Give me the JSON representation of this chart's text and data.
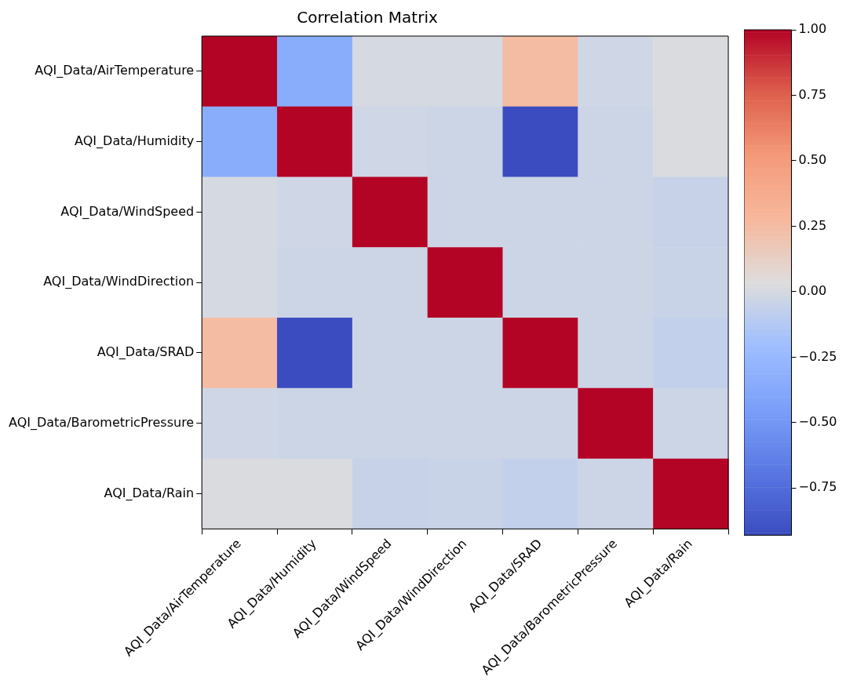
{
  "chart_data": {
    "type": "heatmap",
    "title": "Correlation Matrix",
    "categories": [
      "AQI_Data/AirTemperature",
      "AQI_Data/Humidity",
      "AQI_Data/WindSpeed",
      "AQI_Data/WindDirection",
      "AQI_Data/SRAD",
      "AQI_Data/BarometricPressure",
      "AQI_Data/Rain"
    ],
    "y_categories": [
      "AQI_Data/AirTemperature",
      "AQI_Data/Humidity",
      "AQI_Data/WindSpeed",
      "AQI_Data/WindDirection",
      "AQI_Data/SRAD",
      "AQI_Data/BarometricPressure",
      "AQI_Data/Rain"
    ],
    "cells": [
      [
        1,
        -0.35,
        0,
        0,
        0.25,
        -0.02,
        0.02
      ],
      [
        -0.35,
        1,
        -0.02,
        -0.03,
        -0.93,
        -0.03,
        0.02
      ],
      [
        0,
        -0.02,
        1,
        -0.03,
        -0.03,
        -0.03,
        -0.05
      ],
      [
        0,
        -0.03,
        -0.03,
        1,
        -0.03,
        -0.03,
        -0.04
      ],
      [
        0.25,
        -0.93,
        -0.03,
        -0.03,
        1,
        -0.03,
        -0.07
      ],
      [
        -0.02,
        -0.03,
        -0.03,
        -0.03,
        -0.03,
        1,
        -0.03
      ],
      [
        0.02,
        0.02,
        -0.05,
        -0.04,
        -0.07,
        -0.03,
        1
      ]
    ],
    "clim": [
      -0.93,
      1
    ],
    "cticks": [
      {
        "value": 1,
        "label": "1.00"
      },
      {
        "value": 0.75,
        "label": "0.75"
      },
      {
        "value": 0.5,
        "label": "0.50"
      },
      {
        "value": 0.25,
        "label": "0.25"
      },
      {
        "value": 0,
        "label": "0.00"
      },
      {
        "value": -0.25,
        "label": "−0.25"
      },
      {
        "value": -0.5,
        "label": "−0.50"
      },
      {
        "value": -0.75,
        "label": "−0.75"
      }
    ]
  }
}
